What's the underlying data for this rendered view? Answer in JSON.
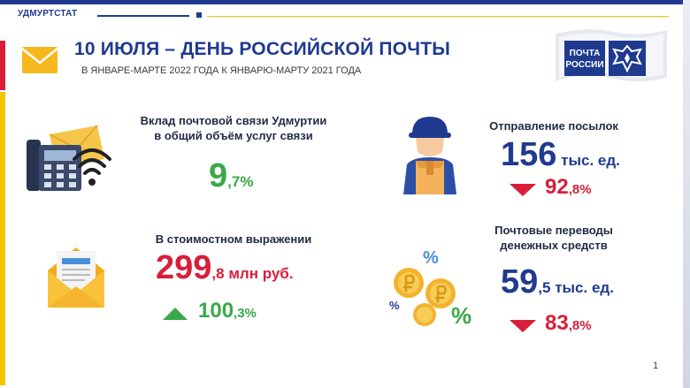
{
  "header": {
    "org": "УДМУРТСТАТ",
    "title": "10 ИЮЛЯ – ДЕНЬ РОССИЙСКОЙ ПОЧТЫ",
    "subtitle": "В ЯНВАРЕ-МАРТЕ 2022 ГОДА К ЯНВАРЮ-МАРТУ 2021 ГОДА"
  },
  "logo": {
    "line1": "ПОЧТА",
    "line2": "РОССИИ"
  },
  "share": {
    "label_line1": "Вклад почтовой связи Удмуртии",
    "label_line2": "в общий объём услуг связи",
    "value_int": "9",
    "value_frac": ",7%"
  },
  "value": {
    "label": "В стоимостном выражении",
    "amount_int": "299",
    "amount_frac": ",8",
    "amount_unit": "млн руб.",
    "change_int": "100",
    "change_frac": ",3%"
  },
  "parcels": {
    "label": "Отправление посылок",
    "amount_int": "156",
    "amount_unit": "тыс. ед.",
    "change_int": "92",
    "change_frac": ",8%"
  },
  "transfers": {
    "label_line1": "Почтовые переводы",
    "label_line2": "денежных средств",
    "amount_int": "59",
    "amount_frac": ",5",
    "amount_unit": "тыс. ед.",
    "change_int": "83",
    "change_frac": ",8%"
  },
  "page_number": "1",
  "colors": {
    "navy": "#1f3a8f",
    "red": "#d81e3a",
    "green": "#3aa84a",
    "yellow": "#f3c500"
  }
}
